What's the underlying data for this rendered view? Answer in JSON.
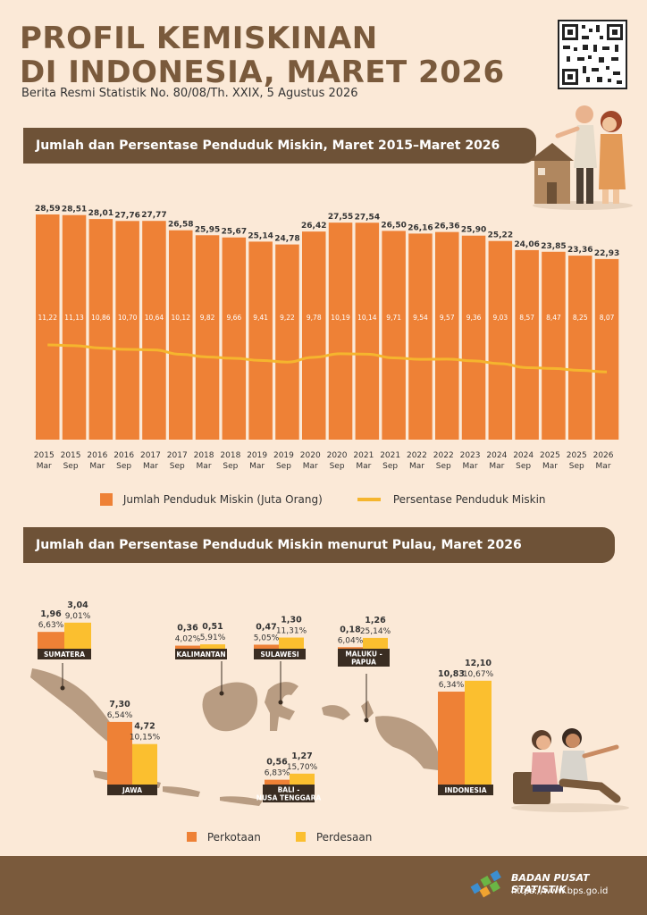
{
  "header": {
    "title_line1": "PROFIL KEMISKINAN",
    "title_line2": "DI INDONESIA, MARET 2026",
    "subtitle": "Berita Resmi Statistik No. 80/08/Th. XXIX, 5 Agustus 2026"
  },
  "section1": {
    "title": "Jumlah dan Persentase Penduduk Miskin, Maret 2015–Maret 2026"
  },
  "section2": {
    "title": "Jumlah dan Persentase Penduduk Miskin menurut Pulau, Maret 2026"
  },
  "colors": {
    "bar": "#ee8136",
    "line": "#f5b52e",
    "urban": "#ee8136",
    "rural": "#fbbf2f",
    "brown": "#7a5a3c",
    "map": "#b89c82"
  },
  "chart_data": [
    {
      "type": "bar",
      "title": "Jumlah dan Persentase Penduduk Miskin, Maret 2015–Maret 2026",
      "categories": [
        [
          "2015",
          "Mar"
        ],
        [
          "2015",
          "Sep"
        ],
        [
          "2016",
          "Mar"
        ],
        [
          "2016",
          "Sep"
        ],
        [
          "2017",
          "Mar"
        ],
        [
          "2017",
          "Sep"
        ],
        [
          "2018",
          "Mar"
        ],
        [
          "2018",
          "Sep"
        ],
        [
          "2019",
          "Mar"
        ],
        [
          "2019",
          "Sep"
        ],
        [
          "2020",
          "Mar"
        ],
        [
          "2020",
          "Sep"
        ],
        [
          "2021",
          "Mar"
        ],
        [
          "2021",
          "Sep"
        ],
        [
          "2022",
          "Mar"
        ],
        [
          "2022",
          "Sep"
        ],
        [
          "2023",
          "Mar"
        ],
        [
          "2024",
          "Mar"
        ],
        [
          "2024",
          "Sep"
        ],
        [
          "2025",
          "Mar"
        ],
        [
          "2025",
          "Sep"
        ],
        [
          "2026",
          "Mar"
        ]
      ],
      "series": [
        {
          "name": "Jumlah Penduduk Miskin (Juta Orang)",
          "type": "bar",
          "values": [
            28.59,
            28.51,
            28.01,
            27.76,
            27.77,
            26.58,
            25.95,
            25.67,
            25.14,
            24.78,
            26.42,
            27.55,
            27.54,
            26.5,
            26.16,
            26.36,
            25.9,
            25.22,
            24.06,
            23.85,
            23.36,
            22.93
          ],
          "labels": [
            "28,59",
            "28,51",
            "28,01",
            "27,76",
            "27,77",
            "26,58",
            "25,95",
            "25,67",
            "25,14",
            "24,78",
            "26,42",
            "27,55",
            "27,54",
            "26,50",
            "26,16",
            "26,36",
            "25,90",
            "25,22",
            "24,06",
            "23,85",
            "23,36",
            "22,93"
          ]
        },
        {
          "name": "Persentase Penduduk Miskin",
          "type": "line",
          "values": [
            11.22,
            11.13,
            10.86,
            10.7,
            10.64,
            10.12,
            9.82,
            9.66,
            9.41,
            9.22,
            9.78,
            10.19,
            10.14,
            9.71,
            9.54,
            9.57,
            9.36,
            9.03,
            8.57,
            8.47,
            8.25,
            8.07
          ],
          "labels": [
            "11,22",
            "11,13",
            "10,86",
            "10,70",
            "10,64",
            "10,12",
            "9,82",
            "9,66",
            "9,41",
            "9,22",
            "9,78",
            "10,19",
            "10,14",
            "9,71",
            "9,54",
            "9,57",
            "9,36",
            "9,03",
            "8,57",
            "8,47",
            "8,25",
            "8,07"
          ]
        }
      ]
    },
    {
      "type": "bar",
      "title": "Jumlah dan Persentase Penduduk Miskin menurut Pulau, Maret 2026",
      "legend": [
        "Perkotaan",
        "Perdesaan"
      ],
      "islands": [
        {
          "name": "SUMATERA",
          "urban": {
            "value": 1.96,
            "label": "1,96",
            "pct": "6,63%"
          },
          "rural": {
            "value": 3.04,
            "label": "3,04",
            "pct": "9,01%"
          }
        },
        {
          "name": "JAWA",
          "urban": {
            "value": 7.3,
            "label": "7,30",
            "pct": "6,54%"
          },
          "rural": {
            "value": 4.72,
            "label": "4,72",
            "pct": "10,15%"
          }
        },
        {
          "name": "KALIMANTAN",
          "urban": {
            "value": 0.36,
            "label": "0,36",
            "pct": "4,02%"
          },
          "rural": {
            "value": 0.51,
            "label": "0,51",
            "pct": "5,91%"
          }
        },
        {
          "name": "SULAWESI",
          "urban": {
            "value": 0.47,
            "label": "0,47",
            "pct": "5,05%"
          },
          "rural": {
            "value": 1.3,
            "label": "1,30",
            "pct": "11,31%"
          }
        },
        {
          "name": "MALUKU - PAPUA",
          "urban": {
            "value": 0.18,
            "label": "0,18",
            "pct": "6,04%"
          },
          "rural": {
            "value": 1.26,
            "label": "1,26",
            "pct": "25,14%"
          }
        },
        {
          "name": "BALI - NUSA TENGGARA",
          "urban": {
            "value": 0.56,
            "label": "0,56",
            "pct": "6,83%"
          },
          "rural": {
            "value": 1.27,
            "label": "1,27",
            "pct": "15,70%"
          }
        },
        {
          "name": "INDONESIA",
          "urban": {
            "value": 10.83,
            "label": "10,83",
            "pct": "6,34%"
          },
          "rural": {
            "value": 12.1,
            "label": "12,10",
            "pct": "10,67%"
          }
        }
      ]
    }
  ],
  "legend1": {
    "bar_label": "Jumlah Penduduk Miskin (Juta Orang)",
    "line_label": "Persentase Penduduk Miskin"
  },
  "legend2": {
    "urban_label": "Perkotaan",
    "rural_label": "Perdesaan"
  },
  "footer": {
    "org": "BADAN PUSAT STATISTIK",
    "url": "https://www.bps.go.id"
  }
}
